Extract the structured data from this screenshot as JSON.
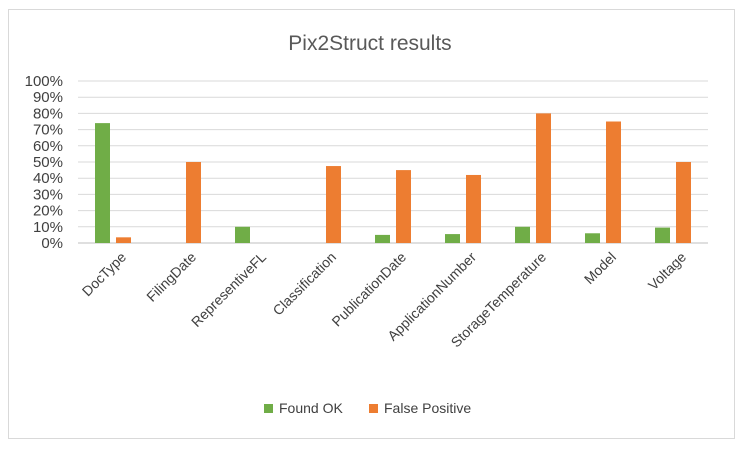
{
  "chart_data": {
    "type": "bar",
    "title": "Pix2Struct results",
    "categories": [
      "DocType",
      "FilingDate",
      "RepresentiveFL",
      "Classification",
      "PublicationDate",
      "ApplicationNumber",
      "StorageTemperature",
      "Model",
      "Voltage"
    ],
    "series": [
      {
        "name": "Found OK",
        "color": "#70ad47",
        "values": [
          74,
          0,
          10,
          0,
          5,
          5.5,
          10,
          6,
          9.5
        ]
      },
      {
        "name": "False Positive",
        "color": "#ed7d31",
        "values": [
          3.5,
          50,
          0,
          47.5,
          45,
          42,
          80,
          75,
          50
        ]
      }
    ],
    "ylim": [
      0,
      100
    ],
    "yticks": [
      "0%",
      "10%",
      "20%",
      "30%",
      "40%",
      "50%",
      "60%",
      "70%",
      "80%",
      "90%",
      "100%"
    ],
    "grid": true,
    "legend_position": "bottom"
  }
}
